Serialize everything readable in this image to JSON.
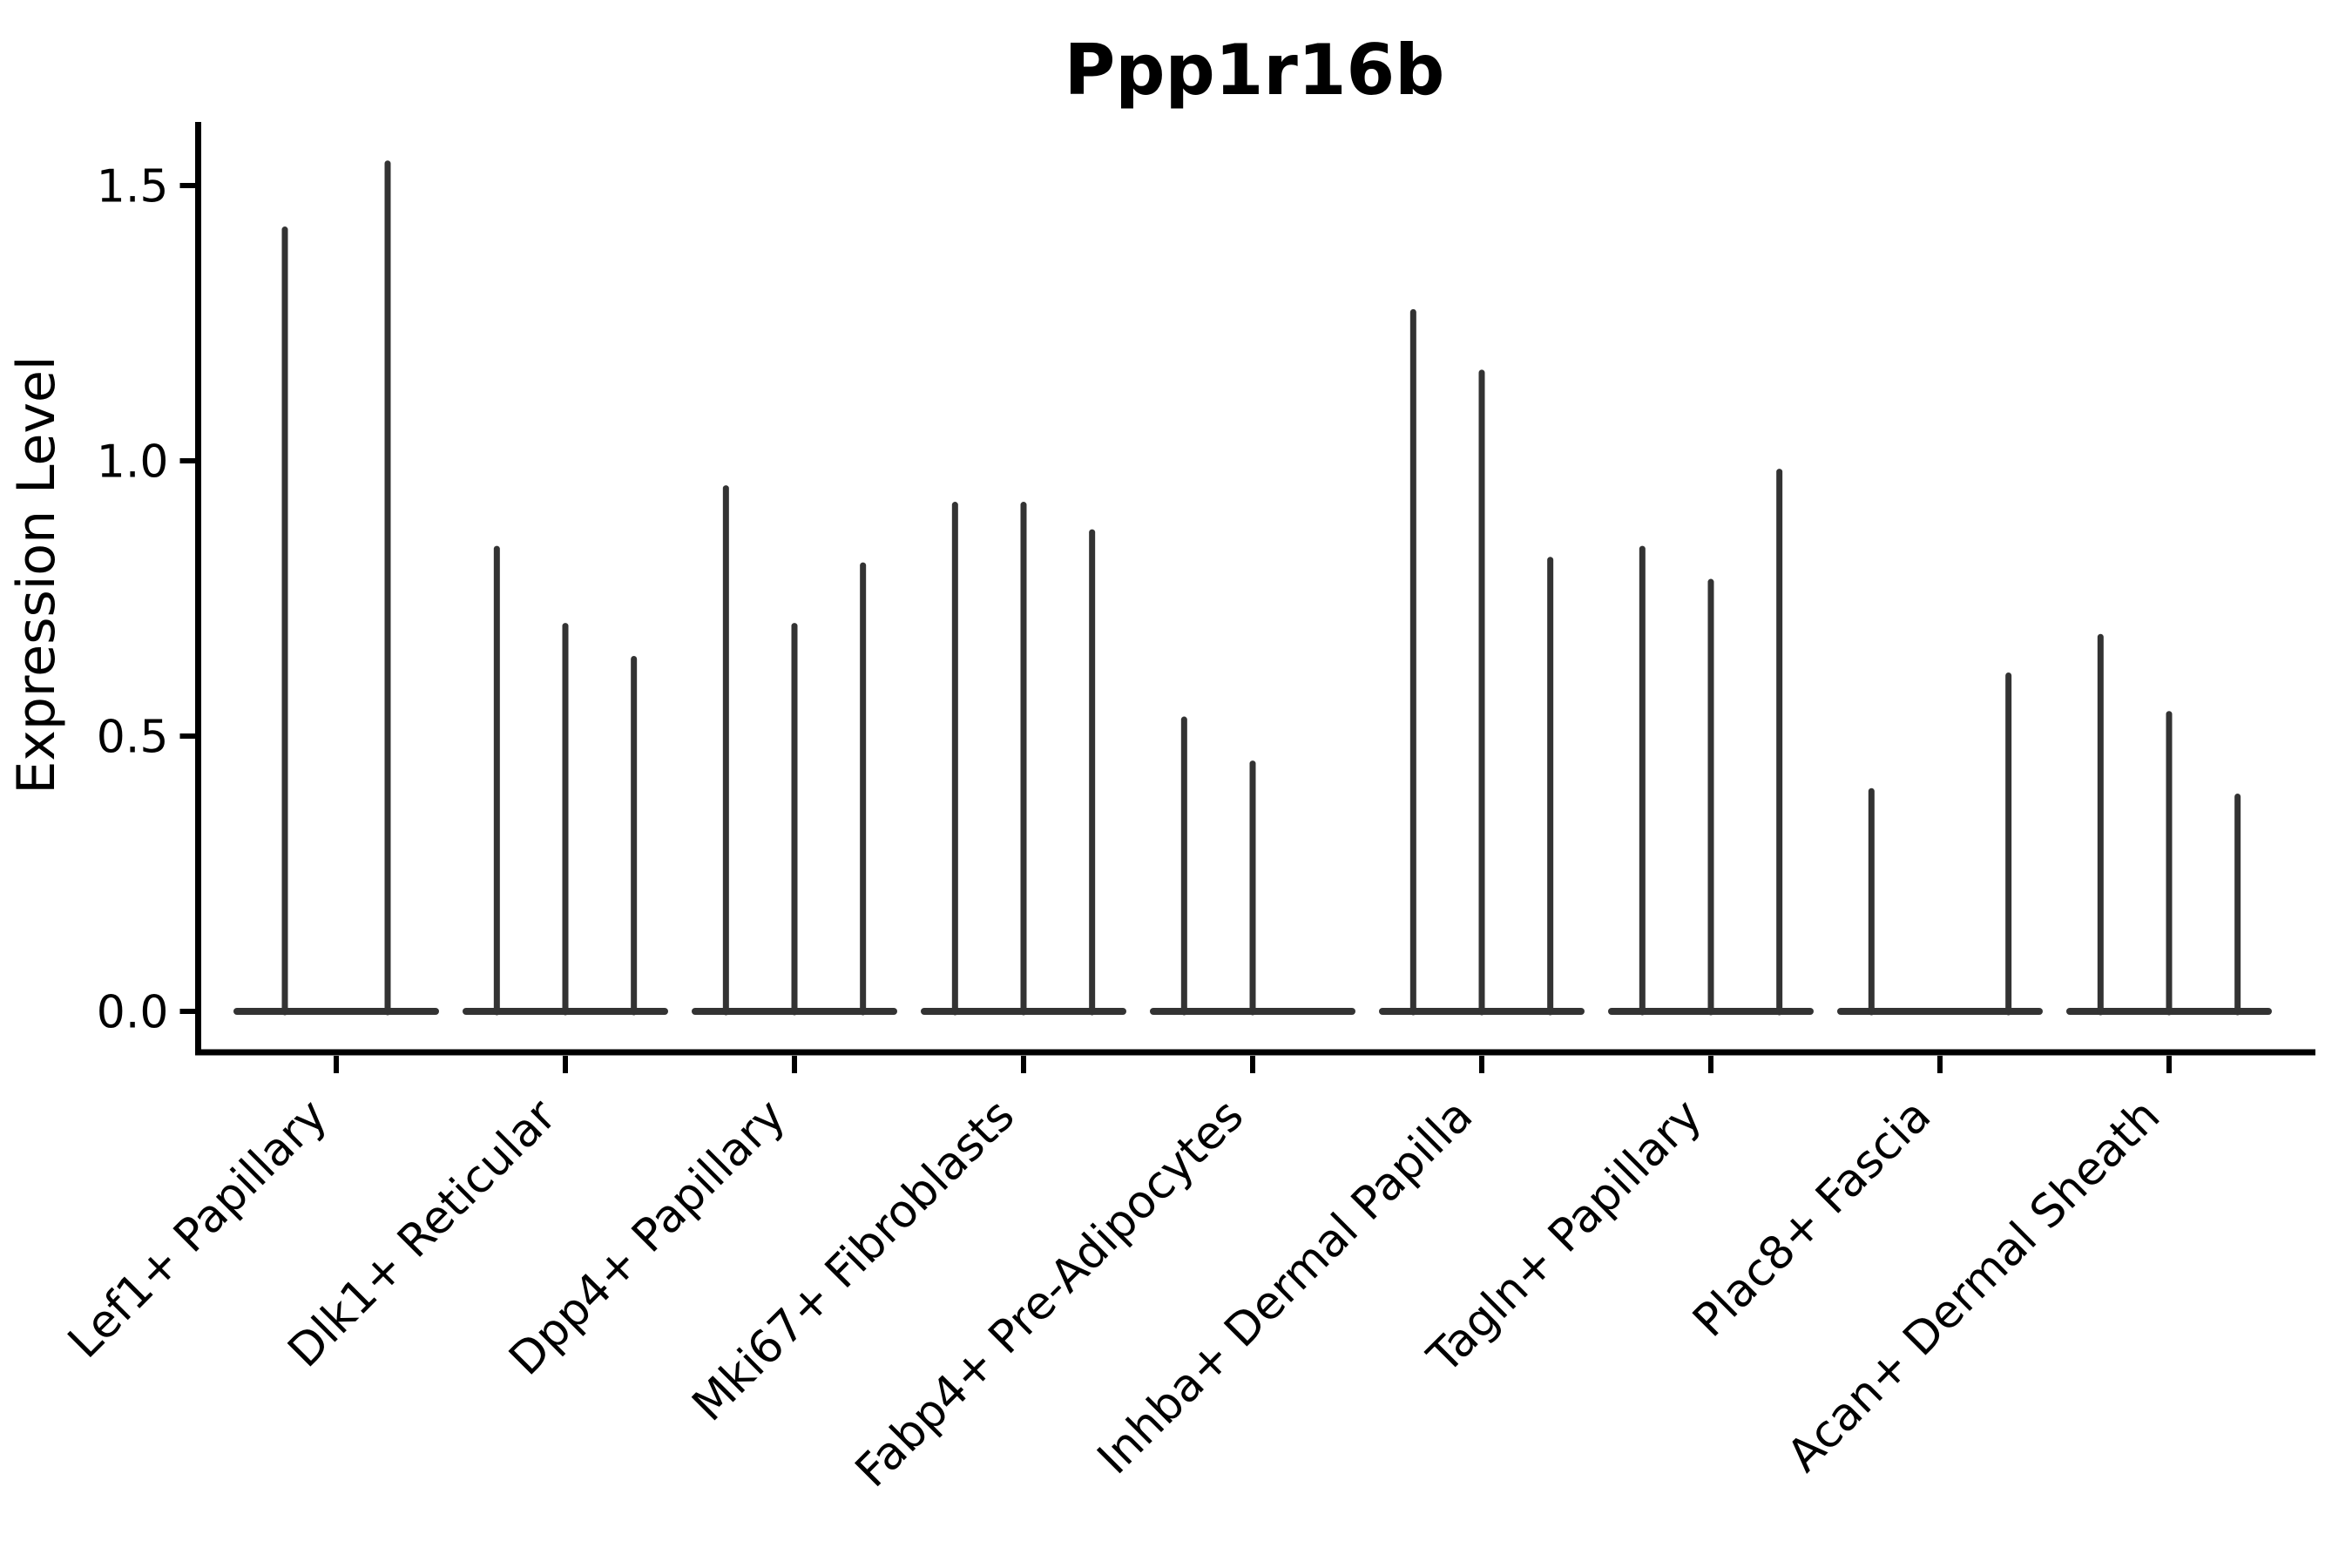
{
  "chart_data": {
    "type": "violin",
    "title": "Ppp1r16b",
    "ylabel": "Expression Level",
    "xlabel": "",
    "y_tick_values": [
      0.0,
      0.5,
      1.0,
      1.5
    ],
    "y_tick_labels": [
      "0.0",
      "0.5",
      "1.0",
      "1.5"
    ],
    "ylim": [
      -0.07,
      1.62
    ],
    "x_tick_rotation": 45,
    "grid": false,
    "legend_position": "none",
    "baseline_value": 0.0,
    "groups": [
      {
        "label": "Lef1+ Papillary",
        "violin_peaks": [
          1.42,
          1.54
        ]
      },
      {
        "label": "Dlk1+ Reticular",
        "violin_peaks": [
          0.84,
          0.7,
          0.64
        ]
      },
      {
        "label": "Dpp4+ Papillary",
        "violin_peaks": [
          0.95,
          0.7,
          0.81
        ]
      },
      {
        "label": "Mki67+ Fibroblasts",
        "violin_peaks": [
          0.92,
          0.92,
          0.87
        ]
      },
      {
        "label": "Fabp4+ Pre-Adipocytes",
        "violin_peaks": [
          0.53,
          0.45,
          0.0
        ]
      },
      {
        "label": "Inhba+ Dermal Papilla",
        "violin_peaks": [
          1.27,
          1.16,
          0.82
        ]
      },
      {
        "label": "Tagln+ Papillary",
        "violin_peaks": [
          0.84,
          0.78,
          0.98
        ]
      },
      {
        "label": "Plac8+ Fascia",
        "violin_peaks": [
          0.4,
          0.0,
          0.61
        ]
      },
      {
        "label": "Acan+ Dermal Sheath",
        "violin_peaks": [
          0.68,
          0.54,
          0.39
        ]
      }
    ],
    "colors": {
      "violin_stroke": "#333333",
      "axis": "#000000",
      "text": "#000000",
      "background": "#ffffff"
    }
  }
}
